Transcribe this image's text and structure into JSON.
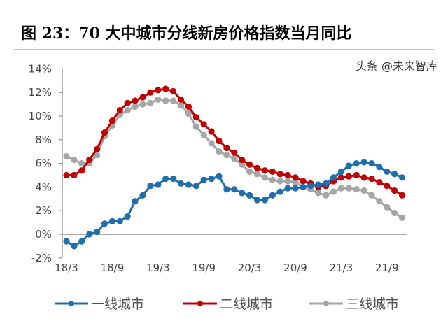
{
  "chart_data": {
    "type": "line",
    "title": "图 23：70 大中城市分线新房价格指数当月同比",
    "xlabel": "",
    "ylabel": "",
    "ylim": [
      -2,
      14
    ],
    "yticks": [
      "-2%",
      "0%",
      "2%",
      "4%",
      "6%",
      "8%",
      "10%",
      "12%",
      "14%"
    ],
    "ytick_values": [
      -2,
      0,
      2,
      4,
      6,
      8,
      10,
      12,
      14
    ],
    "xticks": [
      "18/3",
      "18/9",
      "19/3",
      "19/9",
      "20/3",
      "20/9",
      "21/3",
      "21/9"
    ],
    "xtick_indices": [
      0,
      6,
      12,
      18,
      24,
      30,
      36,
      42
    ],
    "x_start": "2018/3",
    "x_end": "2021/11",
    "grid": false,
    "legend_position": "bottom",
    "series": [
      {
        "name": "一线城市",
        "color": "#1f6fae",
        "values": [
          -0.6,
          -1.0,
          -0.6,
          0.0,
          0.2,
          0.9,
          1.1,
          1.1,
          1.5,
          2.8,
          3.3,
          4.1,
          4.2,
          4.7,
          4.7,
          4.3,
          4.2,
          4.1,
          4.6,
          4.7,
          4.9,
          3.8,
          3.8,
          3.5,
          3.3,
          2.9,
          2.9,
          3.3,
          3.6,
          3.9,
          3.9,
          4.0,
          4.1,
          4.2,
          4.3,
          4.8,
          5.3,
          5.8,
          6.0,
          6.1,
          6.0,
          5.7,
          5.3,
          5.1,
          4.8
        ]
      },
      {
        "name": "二线城市",
        "color": "#c00000",
        "values": [
          5.0,
          5.0,
          5.4,
          6.3,
          7.2,
          8.6,
          9.6,
          10.5,
          11.1,
          11.3,
          11.6,
          12.0,
          12.2,
          12.3,
          12.1,
          11.4,
          10.8,
          9.9,
          9.3,
          8.7,
          7.9,
          7.3,
          6.9,
          6.3,
          5.9,
          5.6,
          5.4,
          5.3,
          5.1,
          5.0,
          4.8,
          4.5,
          4.3,
          4.0,
          4.1,
          4.5,
          4.8,
          4.9,
          5.0,
          4.8,
          4.7,
          4.4,
          4.1,
          3.7,
          3.3
        ]
      },
      {
        "name": "三线城市",
        "color": "#a6a6a6",
        "values": [
          6.6,
          6.3,
          6.0,
          6.0,
          6.7,
          8.3,
          9.2,
          10.1,
          10.5,
          10.8,
          11.0,
          11.1,
          11.4,
          11.3,
          11.3,
          10.9,
          10.2,
          9.1,
          8.4,
          7.7,
          7.0,
          6.7,
          6.4,
          5.9,
          5.3,
          5.1,
          4.8,
          4.6,
          4.5,
          4.5,
          4.4,
          4.0,
          3.8,
          3.5,
          3.3,
          3.6,
          3.9,
          3.9,
          3.8,
          3.7,
          3.3,
          2.8,
          2.3,
          1.8,
          1.4
        ]
      }
    ]
  },
  "watermark": "头条 @未来智库"
}
